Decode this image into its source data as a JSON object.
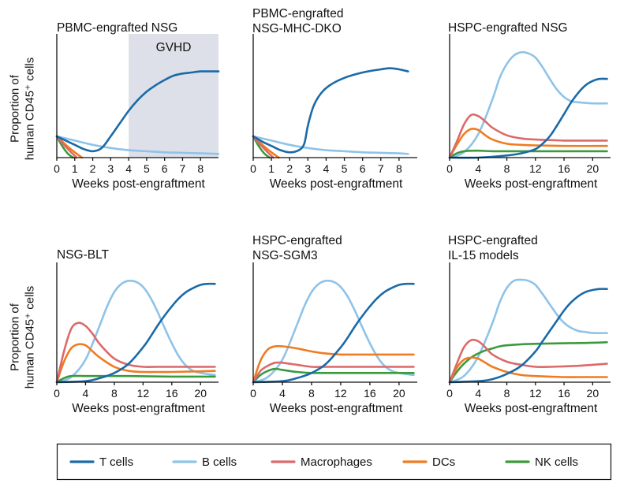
{
  "chart_data": [
    {
      "type": "line",
      "title": [
        "PBMC-engrafted NSG"
      ],
      "xlabel": "Weeks post-engraftment",
      "ylabel": "Proportion of human CD45⁺ cells",
      "xlim": [
        0,
        9
      ],
      "xticks": [
        "0",
        "1",
        "2",
        "3",
        "4",
        "5",
        "6",
        "7",
        "8"
      ],
      "xtick_values": [
        0,
        1,
        2,
        3,
        4,
        5,
        6,
        7,
        8
      ],
      "ylim": [
        0,
        1
      ],
      "annotation": {
        "label": "GVHD",
        "x_start": 4,
        "x_end": 9,
        "fill": "#dde0e8"
      },
      "series": [
        {
          "name": "T cells",
          "x": [
            0,
            0.5,
            1,
            1.5,
            2,
            2.5,
            3,
            3.5,
            4,
            4.5,
            5,
            5.5,
            6,
            6.5,
            7,
            7.5,
            8,
            8.5,
            9
          ],
          "y": [
            0.2,
            0.16,
            0.12,
            0.08,
            0.06,
            0.09,
            0.2,
            0.32,
            0.44,
            0.54,
            0.62,
            0.68,
            0.73,
            0.77,
            0.79,
            0.8,
            0.81,
            0.81,
            0.81
          ]
        },
        {
          "name": "B cells",
          "x": [
            0,
            1,
            2,
            3,
            4,
            5,
            6,
            7,
            8,
            9
          ],
          "y": [
            0.2,
            0.16,
            0.12,
            0.09,
            0.07,
            0.06,
            0.05,
            0.045,
            0.04,
            0.035
          ]
        },
        {
          "name": "Macrophages",
          "x": [
            0,
            0.4,
            0.8,
            1.1
          ],
          "y": [
            0.2,
            0.12,
            0.05,
            0
          ]
        },
        {
          "name": "DCs",
          "x": [
            0,
            0.5,
            1,
            1.4
          ],
          "y": [
            0.2,
            0.12,
            0.05,
            0
          ]
        },
        {
          "name": "NK cells",
          "x": [
            0,
            0.3,
            0.6,
            0.9
          ],
          "y": [
            0.2,
            0.11,
            0.04,
            0
          ]
        }
      ]
    },
    {
      "type": "line",
      "title": [
        "PBMC-engrafted",
        "NSG-MHC-DKO"
      ],
      "xlabel": "Weeks post-engraftment",
      "xlim": [
        0,
        9
      ],
      "xticks": [
        "0",
        "1",
        "2",
        "3",
        "4",
        "5",
        "6",
        "7",
        "8"
      ],
      "xtick_values": [
        0,
        1,
        2,
        3,
        4,
        5,
        6,
        7,
        8
      ],
      "ylim": [
        0,
        1
      ],
      "series": [
        {
          "name": "T cells",
          "x": [
            0,
            0.5,
            1,
            1.5,
            2,
            2.5,
            2.8,
            3,
            3.3,
            3.7,
            4.2,
            5,
            6,
            7,
            7.5,
            8,
            8.5
          ],
          "y": [
            0.2,
            0.15,
            0.11,
            0.07,
            0.05,
            0.07,
            0.13,
            0.3,
            0.48,
            0.6,
            0.68,
            0.75,
            0.8,
            0.83,
            0.84,
            0.83,
            0.81
          ]
        },
        {
          "name": "B cells",
          "x": [
            0,
            1,
            2,
            3,
            4,
            5,
            6,
            7,
            8,
            8.5
          ],
          "y": [
            0.2,
            0.16,
            0.12,
            0.09,
            0.07,
            0.06,
            0.05,
            0.045,
            0.04,
            0.035
          ]
        },
        {
          "name": "Macrophages",
          "x": [
            0,
            0.4,
            0.8,
            1.1
          ],
          "y": [
            0.2,
            0.12,
            0.05,
            0
          ]
        },
        {
          "name": "DCs",
          "x": [
            0,
            0.5,
            1,
            1.4
          ],
          "y": [
            0.2,
            0.12,
            0.05,
            0
          ]
        },
        {
          "name": "NK cells",
          "x": [
            0,
            0.3,
            0.6,
            0.9
          ],
          "y": [
            0.2,
            0.11,
            0.04,
            0
          ]
        }
      ]
    },
    {
      "type": "line",
      "title": [
        "HSPC-engrafted NSG"
      ],
      "xlabel": "Weeks post-engraftment",
      "xlim": [
        0,
        22.5
      ],
      "xticks": [
        "0",
        "4",
        "8",
        "12",
        "16",
        "20"
      ],
      "xtick_values": [
        0,
        4,
        8,
        12,
        16,
        20
      ],
      "ylim": [
        0,
        1
      ],
      "series": [
        {
          "name": "T cells",
          "x": [
            0,
            4,
            8,
            10,
            12,
            13,
            14,
            15,
            16,
            17,
            18,
            19,
            20,
            21,
            22
          ],
          "y": [
            0,
            0,
            0.02,
            0.04,
            0.08,
            0.13,
            0.2,
            0.3,
            0.41,
            0.52,
            0.61,
            0.68,
            0.72,
            0.74,
            0.74
          ]
        },
        {
          "name": "B cells",
          "x": [
            0,
            2,
            4,
            6,
            7,
            8,
            9,
            10,
            11,
            12,
            13,
            14,
            15,
            16,
            17,
            18,
            20,
            22
          ],
          "y": [
            0,
            0.05,
            0.22,
            0.55,
            0.75,
            0.88,
            0.96,
            0.99,
            0.98,
            0.94,
            0.85,
            0.74,
            0.64,
            0.57,
            0.53,
            0.52,
            0.51,
            0.51
          ]
        },
        {
          "name": "Macrophages",
          "x": [
            0,
            1,
            2,
            3,
            4,
            5,
            6,
            8,
            10,
            12,
            14,
            16,
            18,
            22
          ],
          "y": [
            0,
            0.15,
            0.31,
            0.4,
            0.39,
            0.34,
            0.28,
            0.21,
            0.18,
            0.17,
            0.165,
            0.16,
            0.16,
            0.16
          ]
        },
        {
          "name": "DCs",
          "x": [
            0,
            1,
            2,
            3,
            4,
            5,
            6,
            8,
            10,
            12,
            16,
            22
          ],
          "y": [
            0,
            0.12,
            0.22,
            0.27,
            0.26,
            0.21,
            0.17,
            0.13,
            0.12,
            0.115,
            0.11,
            0.11
          ]
        },
        {
          "name": "NK cells",
          "x": [
            0,
            1,
            2,
            4,
            6,
            10,
            16,
            22
          ],
          "y": [
            0,
            0.04,
            0.06,
            0.065,
            0.06,
            0.06,
            0.06,
            0.06
          ]
        }
      ]
    },
    {
      "type": "line",
      "title": [
        "NSG-BLT"
      ],
      "xlabel": "Weeks post-engraftment",
      "ylabel": "Proportion of human CD45⁺ cells",
      "xlim": [
        0,
        22.5
      ],
      "xticks": [
        "0",
        "4",
        "8",
        "12",
        "16",
        "20"
      ],
      "xtick_values": [
        0,
        4,
        8,
        12,
        16,
        20
      ],
      "ylim": [
        0,
        1
      ],
      "series": [
        {
          "name": "T cells",
          "x": [
            0,
            4,
            6,
            8,
            10,
            12,
            13,
            14,
            15,
            16,
            17,
            18,
            19,
            20,
            21,
            22
          ],
          "y": [
            0,
            0.01,
            0.04,
            0.09,
            0.18,
            0.34,
            0.44,
            0.55,
            0.65,
            0.74,
            0.82,
            0.88,
            0.92,
            0.95,
            0.96,
            0.96
          ]
        },
        {
          "name": "B cells",
          "x": [
            0,
            2,
            4,
            6,
            7,
            8,
            9,
            10,
            11,
            12,
            13,
            14,
            15,
            16,
            17,
            18,
            19,
            20,
            22
          ],
          "y": [
            0,
            0.05,
            0.22,
            0.56,
            0.74,
            0.88,
            0.96,
            0.99,
            0.98,
            0.93,
            0.83,
            0.69,
            0.53,
            0.38,
            0.25,
            0.16,
            0.11,
            0.09,
            0.07
          ]
        },
        {
          "name": "Macrophages",
          "x": [
            0,
            1,
            2,
            3,
            4,
            5,
            6,
            8,
            10,
            12,
            14,
            16,
            22
          ],
          "y": [
            0,
            0.3,
            0.52,
            0.58,
            0.55,
            0.47,
            0.37,
            0.23,
            0.17,
            0.15,
            0.15,
            0.15,
            0.15
          ]
        },
        {
          "name": "DCs",
          "x": [
            0,
            1,
            2,
            3,
            4,
            5,
            6,
            8,
            10,
            12,
            14,
            16,
            22
          ],
          "y": [
            0,
            0.2,
            0.33,
            0.37,
            0.36,
            0.3,
            0.24,
            0.15,
            0.11,
            0.1,
            0.1,
            0.1,
            0.11
          ]
        },
        {
          "name": "NK cells",
          "x": [
            0,
            1,
            2,
            4,
            6,
            10,
            16,
            22
          ],
          "y": [
            0,
            0.04,
            0.06,
            0.06,
            0.06,
            0.06,
            0.055,
            0.055
          ]
        }
      ]
    },
    {
      "type": "line",
      "title": [
        "HSPC-engrafted",
        "NSG-SGM3"
      ],
      "xlabel": "Weeks post-engraftment",
      "xlim": [
        0,
        22.5
      ],
      "xticks": [
        "0",
        "4",
        "8",
        "12",
        "16",
        "20"
      ],
      "xtick_values": [
        0,
        4,
        8,
        12,
        16,
        20
      ],
      "ylim": [
        0,
        1
      ],
      "series": [
        {
          "name": "T cells",
          "x": [
            0,
            4,
            6,
            8,
            10,
            12,
            13,
            14,
            15,
            16,
            17,
            18,
            19,
            20,
            21,
            22
          ],
          "y": [
            0,
            0.01,
            0.04,
            0.09,
            0.18,
            0.34,
            0.44,
            0.55,
            0.65,
            0.74,
            0.82,
            0.88,
            0.92,
            0.95,
            0.96,
            0.96
          ]
        },
        {
          "name": "B cells",
          "x": [
            0,
            2,
            4,
            6,
            7,
            8,
            9,
            10,
            11,
            12,
            13,
            14,
            15,
            16,
            17,
            18,
            19,
            20,
            22
          ],
          "y": [
            0,
            0.05,
            0.22,
            0.56,
            0.74,
            0.88,
            0.96,
            0.99,
            0.98,
            0.93,
            0.83,
            0.69,
            0.53,
            0.38,
            0.25,
            0.16,
            0.11,
            0.09,
            0.07
          ]
        },
        {
          "name": "Macrophages",
          "x": [
            0,
            1,
            2,
            3,
            4,
            5,
            6,
            8,
            10,
            12,
            16,
            22
          ],
          "y": [
            0,
            0.11,
            0.16,
            0.19,
            0.19,
            0.18,
            0.17,
            0.15,
            0.15,
            0.15,
            0.15,
            0.15
          ]
        },
        {
          "name": "DCs",
          "x": [
            0,
            1,
            2,
            3,
            4,
            6,
            8,
            10,
            12,
            16,
            22
          ],
          "y": [
            0,
            0.21,
            0.32,
            0.35,
            0.35,
            0.33,
            0.3,
            0.28,
            0.27,
            0.27,
            0.27
          ]
        },
        {
          "name": "NK cells",
          "x": [
            0,
            1,
            2,
            3,
            4,
            6,
            8,
            10,
            16,
            22
          ],
          "y": [
            0,
            0.07,
            0.11,
            0.13,
            0.12,
            0.1,
            0.09,
            0.09,
            0.09,
            0.09
          ]
        }
      ]
    },
    {
      "type": "line",
      "title": [
        "HSPC-engrafted",
        "IL-15 models"
      ],
      "xlabel": "Weeks post-engraftment",
      "xlim": [
        0,
        22.5
      ],
      "xticks": [
        "0",
        "4",
        "8",
        "12",
        "16",
        "20"
      ],
      "xtick_values": [
        0,
        4,
        8,
        12,
        16,
        20
      ],
      "ylim": [
        0,
        1
      ],
      "series": [
        {
          "name": "T cells",
          "x": [
            0,
            4,
            6,
            8,
            10,
            12,
            13,
            14,
            15,
            16,
            17,
            18,
            19,
            20,
            21,
            22
          ],
          "y": [
            0,
            0.01,
            0.03,
            0.08,
            0.16,
            0.3,
            0.4,
            0.5,
            0.6,
            0.7,
            0.78,
            0.84,
            0.88,
            0.9,
            0.91,
            0.91
          ]
        },
        {
          "name": "B cells",
          "x": [
            0,
            2,
            4,
            6,
            7,
            8,
            9,
            10,
            11,
            12,
            13,
            14,
            15,
            16,
            17,
            18,
            19,
            20,
            22
          ],
          "y": [
            0,
            0.06,
            0.25,
            0.58,
            0.78,
            0.92,
            0.99,
            1,
            0.99,
            0.95,
            0.86,
            0.76,
            0.66,
            0.58,
            0.53,
            0.5,
            0.49,
            0.48,
            0.48
          ]
        },
        {
          "name": "Macrophages",
          "x": [
            0,
            1,
            2,
            3,
            4,
            5,
            6,
            8,
            10,
            12,
            14,
            16,
            18,
            20,
            22
          ],
          "y": [
            0,
            0.18,
            0.34,
            0.41,
            0.4,
            0.34,
            0.27,
            0.2,
            0.17,
            0.15,
            0.15,
            0.155,
            0.16,
            0.17,
            0.18
          ]
        },
        {
          "name": "DCs",
          "x": [
            0,
            1,
            2,
            3,
            4,
            5,
            6,
            8,
            10,
            12,
            14,
            16,
            18,
            22
          ],
          "y": [
            0,
            0.14,
            0.22,
            0.24,
            0.23,
            0.19,
            0.15,
            0.1,
            0.07,
            0.06,
            0.055,
            0.05,
            0.05,
            0.05
          ]
        },
        {
          "name": "NK cells",
          "x": [
            0,
            1,
            2,
            3,
            4,
            5,
            6,
            7,
            8,
            10,
            12,
            16,
            20,
            22
          ],
          "y": [
            0,
            0.1,
            0.18,
            0.24,
            0.28,
            0.31,
            0.33,
            0.35,
            0.36,
            0.37,
            0.375,
            0.38,
            0.385,
            0.39
          ]
        }
      ]
    }
  ],
  "legend": [
    {
      "name": "T cells",
      "color": "#1a6aa8"
    },
    {
      "name": "B cells",
      "color": "#8fc3e8"
    },
    {
      "name": "Macrophages",
      "color": "#dc6a6a"
    },
    {
      "name": "DCs",
      "color": "#f07b21"
    },
    {
      "name": "NK cells",
      "color": "#3b9a3e"
    }
  ]
}
